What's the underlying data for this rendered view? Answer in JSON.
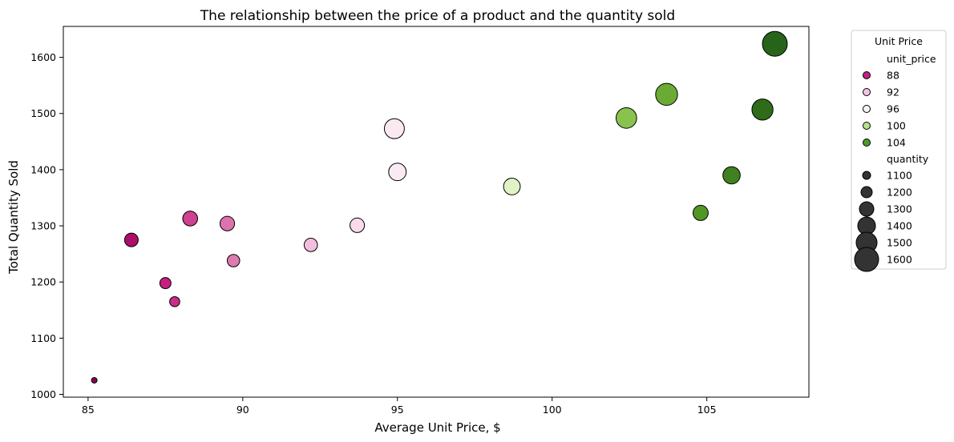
{
  "chart_data": {
    "type": "scatter",
    "title": "The relationship between the price of a product and the quantity sold",
    "xlabel": "Average Unit Price, $",
    "ylabel": "Total Quantity Sold",
    "xlim": [
      84.2,
      108.3
    ],
    "ylim": [
      995,
      1655
    ],
    "xticks": [
      85,
      90,
      95,
      100,
      105
    ],
    "yticks": [
      1000,
      1100,
      1200,
      1300,
      1400,
      1500,
      1600
    ],
    "grid": false,
    "points": [
      {
        "x": 85.2,
        "y": 1025,
        "unit_price": 85.2,
        "quantity": 1025
      },
      {
        "x": 86.4,
        "y": 1275,
        "unit_price": 86.4,
        "quantity": 1275
      },
      {
        "x": 87.5,
        "y": 1198,
        "unit_price": 87.5,
        "quantity": 1198
      },
      {
        "x": 87.8,
        "y": 1165,
        "unit_price": 87.8,
        "quantity": 1165
      },
      {
        "x": 88.3,
        "y": 1313,
        "unit_price": 88.3,
        "quantity": 1313
      },
      {
        "x": 89.5,
        "y": 1304,
        "unit_price": 89.5,
        "quantity": 1304
      },
      {
        "x": 89.7,
        "y": 1238,
        "unit_price": 89.7,
        "quantity": 1238
      },
      {
        "x": 92.2,
        "y": 1266,
        "unit_price": 92.2,
        "quantity": 1266
      },
      {
        "x": 93.7,
        "y": 1301,
        "unit_price": 93.7,
        "quantity": 1301
      },
      {
        "x": 94.9,
        "y": 1473,
        "unit_price": 94.9,
        "quantity": 1473
      },
      {
        "x": 95.0,
        "y": 1396,
        "unit_price": 95.0,
        "quantity": 1396
      },
      {
        "x": 98.7,
        "y": 1370,
        "unit_price": 98.7,
        "quantity": 1370
      },
      {
        "x": 102.4,
        "y": 1492,
        "unit_price": 102.4,
        "quantity": 1492
      },
      {
        "x": 103.7,
        "y": 1534,
        "unit_price": 103.7,
        "quantity": 1534
      },
      {
        "x": 104.8,
        "y": 1323,
        "unit_price": 104.8,
        "quantity": 1323
      },
      {
        "x": 105.8,
        "y": 1390,
        "unit_price": 105.8,
        "quantity": 1390
      },
      {
        "x": 106.8,
        "y": 1507,
        "unit_price": 106.8,
        "quantity": 1507
      },
      {
        "x": 107.2,
        "y": 1624,
        "unit_price": 107.2,
        "quantity": 1624
      }
    ],
    "hue": {
      "variable": "unit_price",
      "palette": "PiYG",
      "range": [
        85.2,
        107.2
      ]
    },
    "size": {
      "variable": "quantity",
      "range": [
        1025,
        1624
      ]
    },
    "legend": {
      "title": "Unit Price",
      "placement": "outside upper right",
      "hue_title": "unit_price",
      "hue_entries": [
        {
          "label": "88",
          "color": "#c2247f"
        },
        {
          "label": "92",
          "color": "#f5c6e2"
        },
        {
          "label": "96",
          "color": "#f9f7f4"
        },
        {
          "label": "100",
          "color": "#b8df8f"
        },
        {
          "label": "104",
          "color": "#4d9a29"
        }
      ],
      "size_title": "quantity",
      "size_entries": [
        {
          "label": "1100",
          "value": 1100
        },
        {
          "label": "1200",
          "value": 1200
        },
        {
          "label": "1300",
          "value": 1300
        },
        {
          "label": "1400",
          "value": 1400
        },
        {
          "label": "1500",
          "value": 1500
        },
        {
          "label": "1600",
          "value": 1600
        }
      ],
      "size_marker_color": "#333333"
    }
  }
}
